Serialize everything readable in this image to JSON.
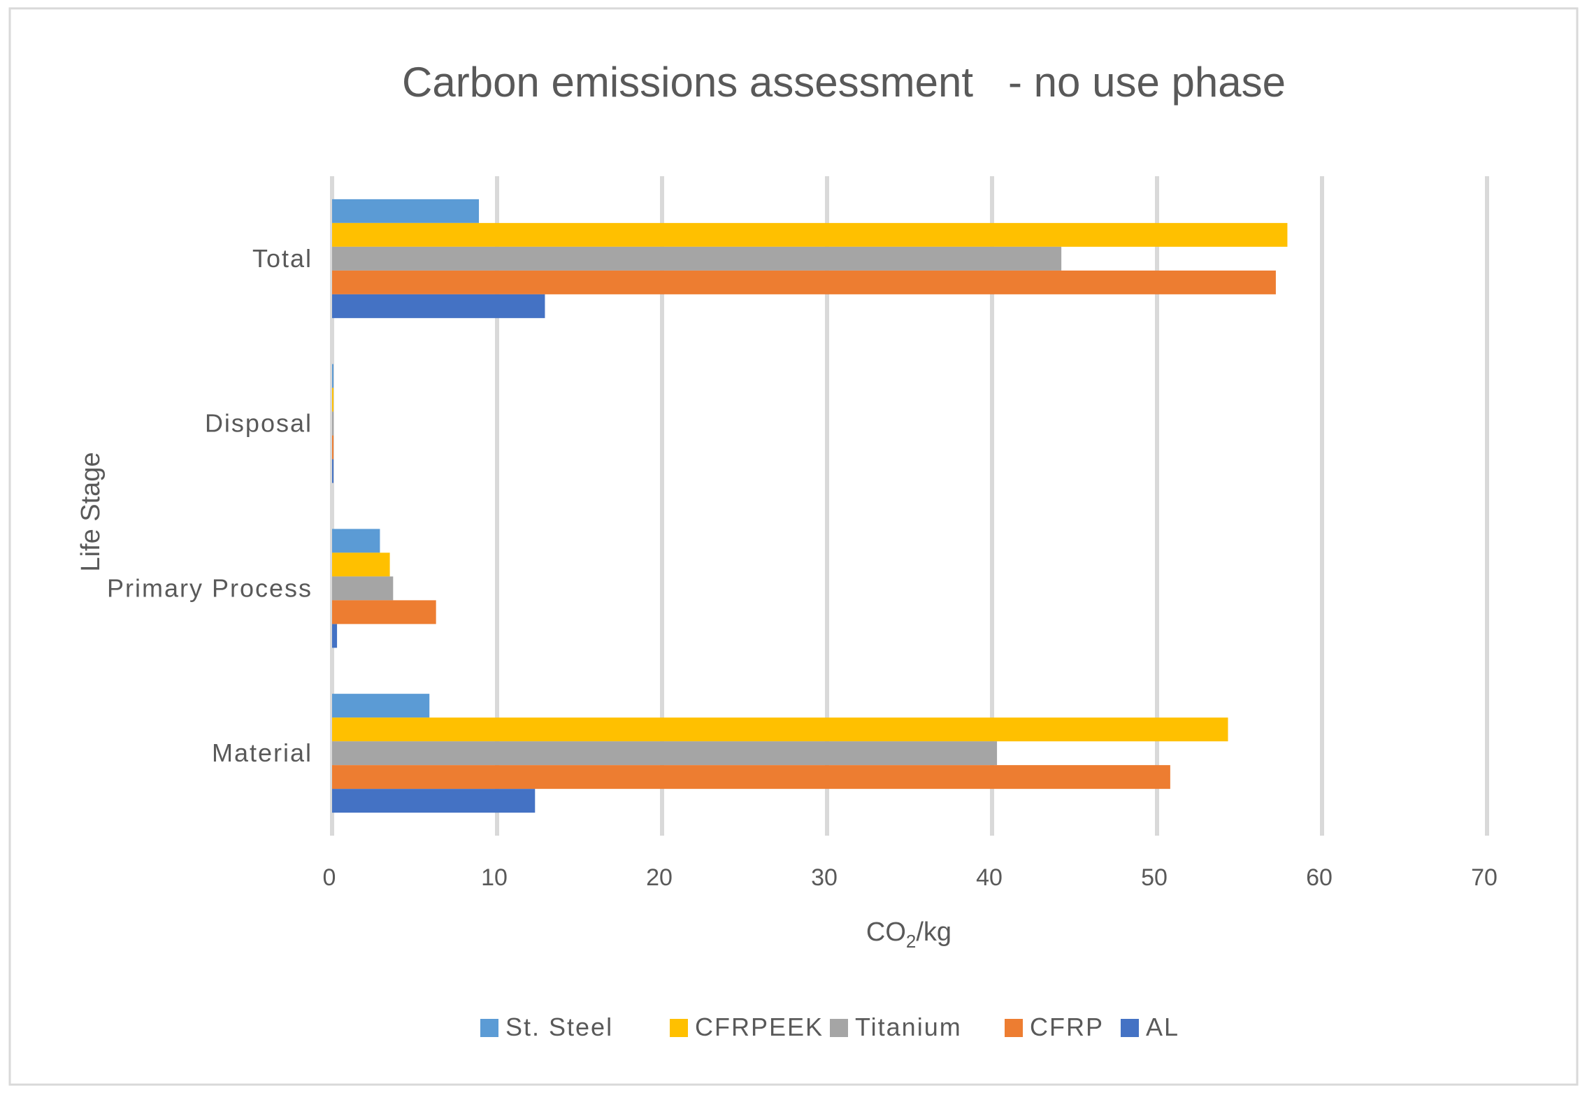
{
  "chart_data": {
    "type": "bar",
    "orientation": "horizontal",
    "title": "Carbon emissions assessment   - no use phase",
    "xlabel_main": "CO",
    "xlabel_sub": "2",
    "xlabel_tail": "/kg",
    "ylabel": "Life Stage",
    "xlim": [
      0,
      70
    ],
    "xticks": [
      "0",
      "10",
      "20",
      "30",
      "40",
      "50",
      "60",
      "70"
    ],
    "grid": true,
    "legend_position": "bottom",
    "categories": [
      "Total",
      "Disposal",
      "Primary Process",
      "Material"
    ],
    "series": [
      {
        "name": "St. Steel",
        "color": "#5B9BD5",
        "values": [
          8.9,
          0.05,
          2.9,
          5.9
        ]
      },
      {
        "name": "CFRPEEK",
        "color": "#FFC000",
        "values": [
          57.9,
          0.05,
          3.5,
          54.3
        ]
      },
      {
        "name": "Titanium",
        "color": "#A5A5A5",
        "values": [
          44.2,
          0.05,
          3.7,
          40.3
        ]
      },
      {
        "name": "CFRP",
        "color": "#ED7D31",
        "values": [
          57.2,
          0.05,
          6.3,
          50.8
        ]
      },
      {
        "name": "AL",
        "color": "#4472C4",
        "values": [
          12.9,
          0.05,
          0.3,
          12.3
        ]
      }
    ]
  }
}
